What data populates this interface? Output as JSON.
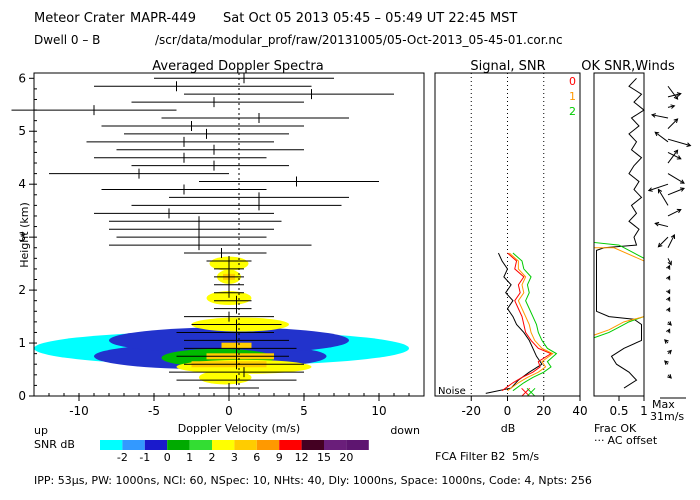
{
  "header": {
    "site": "Meteor Crater",
    "instrument": "MAPR-449",
    "datetime": "Sat Oct 05 2013 05:45 – 05:49 UT 22:45 MST",
    "dwell": "Dwell  0 –  B",
    "path": "/scr/data/modular_prof/raw/20131005/05-Oct-2013_05-45-01.cor.nc"
  },
  "footer": "IPP: 53μs,  PW: 1000ns,  NCI: 60,  NSpec: 10, NHts: 40,  Dly: 1000ns,  Space: 1000ns,  Code: 4,  Npts: 256",
  "fca_filter": "FCA Filter B2",
  "fca_speed": "5m/s",
  "colors": {
    "red": "#ff0000",
    "orange": "#ff9900",
    "green": "#00dd00"
  },
  "scale": {
    "label": "SNR dB",
    "ticks": [
      "-2",
      "-1",
      "0",
      "1",
      "2",
      "3",
      "6",
      "9",
      "12",
      "15",
      "20"
    ],
    "colors": [
      "#00ffff",
      "#3399ff",
      "#1a1acc",
      "#00aa00",
      "#33dd33",
      "#ffff00",
      "#ffcc00",
      "#ff9900",
      "#ff0000",
      "#440022",
      "#6a1e7a",
      "#5e1570"
    ]
  },
  "chart_data": [
    {
      "type": "heatmap",
      "title": "Averaged Doppler Spectra",
      "xlabel": "Doppler Velocity (m/s)",
      "ylabel": "Height (km)",
      "xlim": [
        -13,
        13
      ],
      "ylim": [
        0,
        6.1
      ],
      "xticks": [
        "-10",
        "-5",
        "0",
        "5",
        "10"
      ],
      "yticks": [
        "0",
        "1",
        "2",
        "3",
        "4",
        "5",
        "6"
      ],
      "up_label": "up",
      "down_label": "down",
      "plumes": [
        {
          "h": 0.35,
          "x0": -2,
          "x1": 1.5,
          "level": "yellow"
        },
        {
          "h": 0.55,
          "x0": -3.5,
          "x1": 5.5,
          "level": "yellow"
        },
        {
          "h": 0.72,
          "x0": -4.5,
          "x1": 3,
          "level": "green"
        },
        {
          "h": 0.75,
          "x0": -9,
          "x1": 6.5,
          "level": "blue"
        },
        {
          "h": 0.9,
          "x0": -13,
          "x1": 12,
          "level": "cyan"
        },
        {
          "h": 1.05,
          "x0": -8,
          "x1": 8,
          "level": "blue"
        },
        {
          "h": 1.35,
          "x0": -2.5,
          "x1": 4,
          "level": "yellow"
        },
        {
          "h": 1.85,
          "x0": -1.5,
          "x1": 1.5,
          "level": "yellow"
        },
        {
          "h": 2.25,
          "x0": -0.8,
          "x1": 0.8,
          "level": "yellow"
        },
        {
          "h": 2.5,
          "x0": -1.3,
          "x1": 1.3,
          "level": "yellow"
        }
      ],
      "wind_bars": [
        {
          "h": 6.0,
          "c": 1.0,
          "lo": -5.0,
          "hi": 7.0
        },
        {
          "h": 5.85,
          "c": -3.5,
          "lo": -9.0,
          "hi": 5.5
        },
        {
          "h": 5.7,
          "c": 5.5,
          "lo": -3.0,
          "hi": 11.0
        },
        {
          "h": 5.55,
          "c": -1.0,
          "lo": -6.5,
          "hi": 5.0
        },
        {
          "h": 5.4,
          "c": -9.0,
          "lo": -14.5,
          "hi": -3.5
        },
        {
          "h": 5.25,
          "c": 2.0,
          "lo": -4.5,
          "hi": 8.0
        },
        {
          "h": 5.1,
          "c": -2.5,
          "lo": -8.5,
          "hi": 5.0
        },
        {
          "h": 4.95,
          "c": -1.5,
          "lo": -7.0,
          "hi": 4.0
        },
        {
          "h": 4.8,
          "c": -3.0,
          "lo": -9.5,
          "hi": 3.0
        },
        {
          "h": 4.65,
          "c": -1.0,
          "lo": -7.5,
          "hi": 5.0
        },
        {
          "h": 4.5,
          "c": -3.0,
          "lo": -9.0,
          "hi": 2.5
        },
        {
          "h": 4.35,
          "c": -1.0,
          "lo": -6.5,
          "hi": 4.0
        },
        {
          "h": 4.2,
          "c": -6.0,
          "lo": -12.0,
          "hi": 0.0
        },
        {
          "h": 4.05,
          "c": 4.5,
          "lo": -2.0,
          "hi": 10.0
        },
        {
          "h": 3.9,
          "c": -3.0,
          "lo": -8.5,
          "hi": 2.5
        },
        {
          "h": 3.75,
          "c": 2.0,
          "lo": -4.0,
          "hi": 8.0
        },
        {
          "h": 3.6,
          "c": 2.0,
          "lo": -6.5,
          "hi": 7.5
        },
        {
          "h": 3.45,
          "c": -4.0,
          "lo": -9.0,
          "hi": 3.0
        },
        {
          "h": 3.3,
          "c": -2.0,
          "lo": -8.0,
          "hi": 3.5
        },
        {
          "h": 3.15,
          "c": -2.0,
          "lo": -8.0,
          "hi": 3.0
        },
        {
          "h": 3.0,
          "c": -2.0,
          "lo": -7.5,
          "hi": 2.5
        },
        {
          "h": 2.85,
          "c": -2.0,
          "lo": -8.0,
          "hi": 5.5
        },
        {
          "h": 2.7,
          "c": -0.5,
          "lo": -3.0,
          "hi": 2.5
        },
        {
          "h": 2.55,
          "c": 0.0,
          "lo": -1.5,
          "hi": 1.5
        },
        {
          "h": 2.4,
          "c": 0.0,
          "lo": -1.0,
          "hi": 1.0
        },
        {
          "h": 2.25,
          "c": 0.0,
          "lo": -1.0,
          "hi": 1.0
        },
        {
          "h": 2.1,
          "c": 0.0,
          "lo": -1.0,
          "hi": 1.0
        },
        {
          "h": 1.95,
          "c": 0.0,
          "lo": -1.0,
          "hi": 1.0
        },
        {
          "h": 1.8,
          "c": 0.5,
          "lo": -1.0,
          "hi": 1.5
        },
        {
          "h": 1.65,
          "c": 0.5,
          "lo": -1.0,
          "hi": 1.5
        },
        {
          "h": 1.5,
          "c": 0.0,
          "lo": -3.0,
          "hi": 3.0
        },
        {
          "h": 1.35,
          "c": 0.5,
          "lo": -2.5,
          "hi": 3.5
        },
        {
          "h": 1.2,
          "c": 0.5,
          "lo": -3.5,
          "hi": 3.0
        },
        {
          "h": 1.05,
          "c": 0.5,
          "lo": -3.0,
          "hi": 4.0
        },
        {
          "h": 0.9,
          "c": 0.5,
          "lo": -3.0,
          "hi": 4.5
        },
        {
          "h": 0.75,
          "c": 0.5,
          "lo": -3.5,
          "hi": 4.0
        },
        {
          "h": 0.6,
          "c": 0.5,
          "lo": -3.0,
          "hi": 5.0
        },
        {
          "h": 0.45,
          "c": 1.0,
          "lo": -4.0,
          "hi": 5.0
        },
        {
          "h": 0.3,
          "c": 0.5,
          "lo": -3.5,
          "hi": 4.5
        },
        {
          "h": 0.15,
          "c": 0.0,
          "lo": -2.0,
          "hi": 2.0
        }
      ]
    },
    {
      "type": "line",
      "title": "Signal, SNR",
      "xlabel": "dB",
      "xlim": [
        -40,
        40
      ],
      "xticks": [
        "-20",
        "0",
        "20",
        "40"
      ],
      "noise_label": "Noise",
      "legend": [
        "0",
        "1",
        "2"
      ],
      "series": [
        {
          "name": "signal",
          "color": "black",
          "points": [
            [
              -5,
              2.7
            ],
            [
              -3,
              2.55
            ],
            [
              0,
              2.4
            ],
            [
              -2,
              2.25
            ],
            [
              2,
              2.1
            ],
            [
              -1,
              1.95
            ],
            [
              3,
              1.8
            ],
            [
              0,
              1.65
            ],
            [
              3,
              1.5
            ],
            [
              5,
              1.35
            ],
            [
              9,
              1.2
            ],
            [
              12,
              1.05
            ],
            [
              14,
              0.9
            ],
            [
              16,
              0.75
            ],
            [
              19,
              0.6
            ],
            [
              12,
              0.45
            ],
            [
              6,
              0.3
            ],
            [
              2,
              0.15
            ],
            [
              -12,
              0.05
            ]
          ]
        },
        {
          "name": "0",
          "color": "red",
          "points": [
            [
              0,
              2.7
            ],
            [
              5,
              2.55
            ],
            [
              4,
              2.4
            ],
            [
              9,
              2.25
            ],
            [
              6,
              2.1
            ],
            [
              7,
              1.95
            ],
            [
              4,
              1.8
            ],
            [
              6,
              1.65
            ],
            [
              8,
              1.5
            ],
            [
              9,
              1.35
            ],
            [
              10,
              1.2
            ],
            [
              13,
              1.05
            ],
            [
              17,
              0.9
            ],
            [
              24,
              0.8
            ],
            [
              17,
              0.65
            ],
            [
              18,
              0.55
            ],
            [
              14,
              0.45
            ],
            [
              8,
              0.35
            ],
            [
              3,
              0.25
            ],
            [
              -3,
              0.1
            ]
          ]
        },
        {
          "name": "1",
          "color": "orange",
          "points": [
            [
              1,
              2.7
            ],
            [
              6,
              2.55
            ],
            [
              6,
              2.4
            ],
            [
              10,
              2.25
            ],
            [
              8,
              2.1
            ],
            [
              9,
              1.95
            ],
            [
              6,
              1.8
            ],
            [
              8,
              1.65
            ],
            [
              10,
              1.5
            ],
            [
              12,
              1.35
            ],
            [
              13,
              1.2
            ],
            [
              15,
              1.05
            ],
            [
              19,
              0.9
            ],
            [
              25,
              0.8
            ],
            [
              19,
              0.65
            ],
            [
              21,
              0.55
            ],
            [
              17,
              0.45
            ],
            [
              11,
              0.35
            ],
            [
              6,
              0.25
            ],
            [
              0,
              0.1
            ]
          ]
        },
        {
          "name": "2",
          "color": "green",
          "points": [
            [
              3,
              2.7
            ],
            [
              8,
              2.55
            ],
            [
              9,
              2.4
            ],
            [
              13,
              2.25
            ],
            [
              11,
              2.1
            ],
            [
              12,
              1.95
            ],
            [
              10,
              1.8
            ],
            [
              12,
              1.65
            ],
            [
              14,
              1.5
            ],
            [
              16,
              1.35
            ],
            [
              17,
              1.2
            ],
            [
              19,
              1.05
            ],
            [
              22,
              0.9
            ],
            [
              27,
              0.8
            ],
            [
              22,
              0.65
            ],
            [
              24,
              0.55
            ],
            [
              20,
              0.45
            ],
            [
              14,
              0.35
            ],
            [
              9,
              0.25
            ],
            [
              3,
              0.1
            ]
          ]
        }
      ],
      "markers": [
        {
          "x": 10,
          "h": 0.07,
          "color": "red"
        },
        {
          "x": 13,
          "h": 0.07,
          "color": "green"
        }
      ]
    },
    {
      "type": "line",
      "title": "OK SNR,Winds",
      "xlabel": "Frac OK",
      "xticks": [
        "0.5",
        "1"
      ],
      "note": "AC offset",
      "series": [
        {
          "name": "frac_ok",
          "color": "black",
          "points": [
            [
              0.85,
              6.0
            ],
            [
              0.7,
              5.85
            ],
            [
              0.95,
              5.7
            ],
            [
              0.8,
              5.55
            ],
            [
              1.0,
              5.4
            ],
            [
              0.75,
              5.25
            ],
            [
              0.9,
              5.1
            ],
            [
              0.7,
              4.95
            ],
            [
              0.85,
              4.8
            ],
            [
              0.75,
              4.65
            ],
            [
              0.95,
              4.5
            ],
            [
              0.8,
              4.35
            ],
            [
              0.7,
              4.2
            ],
            [
              0.9,
              4.05
            ],
            [
              0.8,
              3.9
            ],
            [
              0.95,
              3.75
            ],
            [
              0.75,
              3.6
            ],
            [
              0.85,
              3.45
            ],
            [
              0.7,
              3.3
            ],
            [
              0.9,
              3.15
            ],
            [
              0.8,
              3.0
            ],
            [
              0.85,
              2.85
            ],
            [
              0.2,
              2.8
            ],
            [
              0.05,
              2.75
            ],
            [
              0.05,
              1.6
            ],
            [
              0.3,
              1.5
            ],
            [
              0.8,
              1.45
            ],
            [
              0.95,
              1.35
            ],
            [
              0.95,
              1.2
            ],
            [
              0.95,
              1.05
            ],
            [
              0.6,
              0.9
            ],
            [
              0.35,
              0.75
            ],
            [
              0.45,
              0.6
            ],
            [
              0.7,
              0.45
            ],
            [
              0.85,
              0.3
            ],
            [
              0.6,
              0.15
            ]
          ]
        },
        {
          "name": "green",
          "color": "green",
          "points": [
            [
              0.0,
              6.0
            ],
            [
              0.0,
              2.9
            ],
            [
              0.5,
              2.85
            ],
            [
              1.0,
              2.6
            ],
            [
              1.0,
              1.5
            ],
            [
              0.7,
              1.4
            ],
            [
              0.5,
              1.3
            ],
            [
              0.3,
              1.2
            ],
            [
              0.0,
              1.1
            ],
            [
              0.0,
              0.05
            ]
          ]
        },
        {
          "name": "orange",
          "color": "orange",
          "points": [
            [
              0.0,
              2.8
            ],
            [
              0.4,
              2.8
            ],
            [
              1.0,
              2.55
            ],
            [
              1.0,
              1.5
            ],
            [
              0.6,
              1.4
            ],
            [
              0.3,
              1.25
            ],
            [
              0.0,
              1.15
            ]
          ]
        }
      ],
      "wind_key_label": "Max",
      "wind_key_speed": "31m/s",
      "wind_arrows": [
        {
          "h": 5.85,
          "u": 3,
          "v": -4
        },
        {
          "h": 5.65,
          "u": 4,
          "v": 1
        },
        {
          "h": 5.45,
          "u": 2,
          "v": 0.5
        },
        {
          "h": 5.25,
          "u": -5,
          "v": 1
        },
        {
          "h": 5.05,
          "u": 3,
          "v": 3
        },
        {
          "h": 4.85,
          "u": 7,
          "v": -2
        },
        {
          "h": 4.8,
          "u": -4,
          "v": 3
        },
        {
          "h": 4.6,
          "u": 4,
          "v": -2
        },
        {
          "h": 4.4,
          "u": 3,
          "v": 4
        },
        {
          "h": 4.2,
          "u": 5,
          "v": -3
        },
        {
          "h": 4.0,
          "u": -6,
          "v": -2
        },
        {
          "h": 3.8,
          "u": 5,
          "v": 2
        },
        {
          "h": 3.6,
          "u": -3,
          "v": 5
        },
        {
          "h": 3.4,
          "u": 4,
          "v": 2
        },
        {
          "h": 3.2,
          "u": -4,
          "v": 1
        },
        {
          "h": 3.0,
          "u": -3,
          "v": -3
        },
        {
          "h": 2.8,
          "u": 2,
          "v": 4
        },
        {
          "h": 2.6,
          "u": 1,
          "v": -2
        },
        {
          "h": 2.4,
          "u": 0.5,
          "v": 1
        },
        {
          "h": 2.2,
          "u": 0.5,
          "v": 1
        },
        {
          "h": 2.0,
          "u": 0.5,
          "v": -1
        },
        {
          "h": 1.8,
          "u": 0.5,
          "v": 1
        },
        {
          "h": 1.6,
          "u": 0.5,
          "v": 1
        },
        {
          "h": 1.4,
          "u": 1,
          "v": -1
        },
        {
          "h": 1.2,
          "u": 0.5,
          "v": 1
        },
        {
          "h": 1.0,
          "u": -1,
          "v": 1
        },
        {
          "h": 0.8,
          "u": 1,
          "v": 1
        },
        {
          "h": 0.6,
          "u": -1,
          "v": 1
        },
        {
          "h": 0.4,
          "u": 1,
          "v": -1
        }
      ]
    }
  ]
}
